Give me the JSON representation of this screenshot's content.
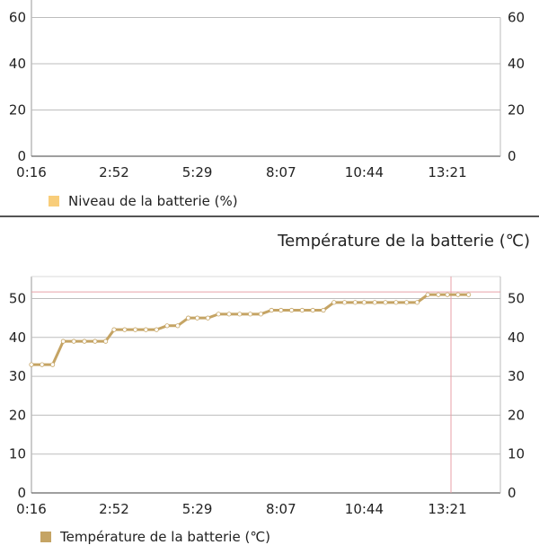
{
  "battery_panel": {
    "legend_label": "Niveau de la batterie (%)",
    "legend_color": "#f8cd7a"
  },
  "temperature_panel": {
    "title": "Température de la batterie (℃)",
    "legend_label": "Température de la batterie (℃)",
    "legend_color": "#c5a464",
    "marker_line_color": "#e8a0a8"
  },
  "chart_data": [
    {
      "type": "line",
      "title": "",
      "x_tick_labels": [
        "0:16",
        "2:52",
        "5:29",
        "8:07",
        "10:44",
        "13:21"
      ],
      "y_ticks_visible": [
        0,
        20,
        40,
        60
      ],
      "ylim_visible": [
        0,
        60
      ],
      "grid": true,
      "series": [
        {
          "name": "Niveau de la batterie (%)",
          "values": []
        }
      ]
    },
    {
      "type": "line",
      "title": "Température de la batterie (℃)",
      "x_tick_labels": [
        "0:16",
        "2:52",
        "5:29",
        "8:07",
        "10:44",
        "13:21"
      ],
      "y_ticks": [
        0,
        10,
        20,
        30,
        40,
        50
      ],
      "ylim": [
        0,
        55
      ],
      "grid": true,
      "reference_line_y": 51,
      "cursor_x": "13:21",
      "series": [
        {
          "name": "Température de la batterie (℃)",
          "x": [
            "0:16",
            "0:36",
            "0:56",
            "1:16",
            "1:36",
            "1:56",
            "2:16",
            "2:36",
            "2:52",
            "3:12",
            "3:32",
            "3:52",
            "4:12",
            "4:32",
            "4:52",
            "5:12",
            "5:29",
            "5:49",
            "6:09",
            "6:29",
            "6:49",
            "7:09",
            "7:29",
            "7:49",
            "8:07",
            "8:27",
            "8:47",
            "9:07",
            "9:27",
            "9:47",
            "10:07",
            "10:27",
            "10:44",
            "11:04",
            "11:24",
            "11:44",
            "12:04",
            "12:24",
            "12:44",
            "13:04",
            "13:21",
            "13:41",
            "14:01"
          ],
          "values": [
            33,
            33,
            33,
            39,
            39,
            39,
            39,
            39,
            42,
            42,
            42,
            42,
            42,
            43,
            43,
            45,
            45,
            45,
            46,
            46,
            46,
            46,
            46,
            47,
            47,
            47,
            47,
            47,
            47,
            49,
            49,
            49,
            49,
            49,
            49,
            49,
            49,
            49,
            51,
            51,
            51,
            51,
            51
          ]
        }
      ]
    }
  ]
}
